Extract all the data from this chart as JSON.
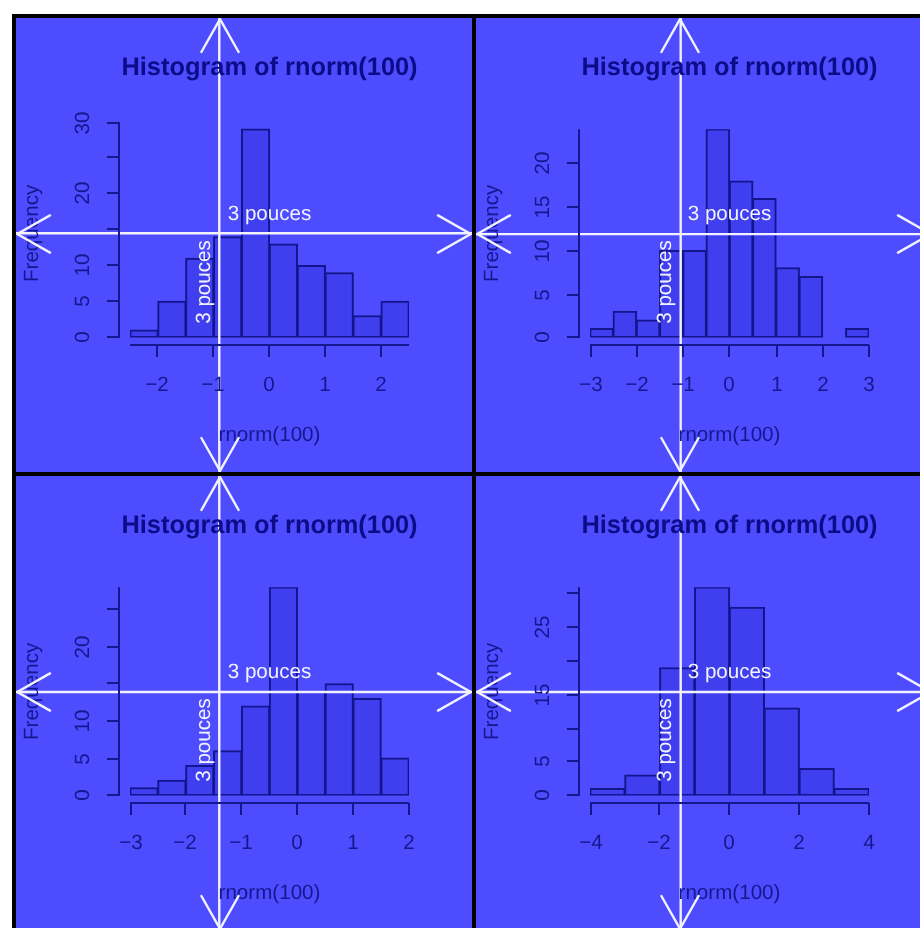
{
  "chart_data": [
    {
      "type": "histogram",
      "title": "Histogram of rnorm(100)",
      "xlabel": "rnorm(100)",
      "ylabel": "Frequency",
      "bins": [
        -2.5,
        -2,
        -1.5,
        -1,
        -0.5,
        0,
        0.5,
        1,
        1.5,
        2,
        2.5
      ],
      "values": [
        1,
        5,
        11,
        14,
        29,
        13,
        10,
        9,
        3,
        5
      ],
      "color": "#3f3ff0",
      "xlim": [
        -2.5,
        2.5
      ],
      "xticks": [
        -2,
        -1,
        0,
        1,
        2
      ],
      "ylim": [
        0,
        30
      ],
      "yticks": [
        0,
        5,
        10,
        {
          "value": 15,
          "label": null
        },
        20,
        {
          "value": 25,
          "label": null
        },
        30
      ],
      "ref_lines": [
        {
          "axis": "y",
          "value": 14.5,
          "label": "3 pouces",
          "color": "#f2f2ff"
        },
        {
          "axis": "x",
          "value": -0.9,
          "label": "3 pouces",
          "color": "#f2f2ff"
        }
      ]
    },
    {
      "type": "histogram",
      "title": "Histogram of rnorm(100)",
      "xlabel": "rnorm(100)",
      "ylabel": "Frequency",
      "bins": [
        -3,
        -2.5,
        -2,
        -1.5,
        -1,
        -0.5,
        0,
        0.5,
        1,
        1.5,
        2,
        2.5,
        3
      ],
      "values": [
        1,
        3,
        2,
        10,
        10,
        24,
        18,
        16,
        8,
        7,
        0,
        1
      ],
      "color": "#3f3ff0",
      "xlim": [
        -3,
        3
      ],
      "xticks": [
        -3,
        -2,
        -1,
        0,
        1,
        2,
        3
      ],
      "ylim": [
        0,
        24
      ],
      "yticks": [
        0,
        5,
        10,
        15,
        20
      ],
      "ref_lines": [
        {
          "axis": "y",
          "value": 11.9,
          "label": "3 pouces",
          "color": "#f2f2ff"
        },
        {
          "axis": "x",
          "value": -1.05,
          "label": "3 pouces",
          "color": "#f2f2ff"
        }
      ]
    },
    {
      "type": "histogram",
      "title": "Histogram of rnorm(100)",
      "xlabel": "rnorm(100)",
      "ylabel": "Frequency",
      "bins": [
        -3,
        -2.5,
        -2,
        -1.5,
        -1,
        -0.5,
        0,
        0.5,
        1,
        1.5,
        2
      ],
      "values": [
        1,
        2,
        4,
        6,
        12,
        28,
        14,
        15,
        13,
        5
      ],
      "color": "#3f3ff0",
      "xlim": [
        -3,
        2
      ],
      "xticks": [
        -3,
        -2,
        -1,
        0,
        1,
        2
      ],
      "ylim": [
        0,
        28
      ],
      "yticks": [
        0,
        5,
        10,
        {
          "value": 15,
          "label": null
        },
        20,
        {
          "value": 25,
          "label": null
        }
      ],
      "ref_lines": [
        {
          "axis": "y",
          "value": 13.9,
          "label": "3 pouces",
          "color": "#f2f2ff"
        },
        {
          "axis": "x",
          "value": -1.4,
          "label": "3 pouces",
          "color": "#f2f2ff"
        }
      ]
    },
    {
      "type": "histogram",
      "title": "Histogram of rnorm(100)",
      "xlabel": "rnorm(100)",
      "ylabel": "Frequency",
      "bins": [
        -4,
        -3,
        -2,
        -1,
        0,
        1,
        2,
        3,
        4
      ],
      "values": [
        1,
        3,
        19,
        31,
        28,
        13,
        4,
        1
      ],
      "color": "#3f3ff0",
      "xlim": [
        -4,
        4
      ],
      "xticks": [
        -4,
        -2,
        0,
        2,
        4
      ],
      "ylim": [
        0,
        31
      ],
      "yticks": [
        0,
        5,
        {
          "value": 10,
          "label": null
        },
        15,
        {
          "value": 20,
          "label": null
        },
        25,
        {
          "value": 30,
          "label": null
        }
      ],
      "ref_lines": [
        {
          "axis": "y",
          "value": 15.4,
          "label": "3 pouces",
          "color": "#f2f2ff"
        },
        {
          "axis": "x",
          "value": -1.4,
          "label": "3 pouces",
          "color": "#f2f2ff"
        }
      ]
    }
  ]
}
